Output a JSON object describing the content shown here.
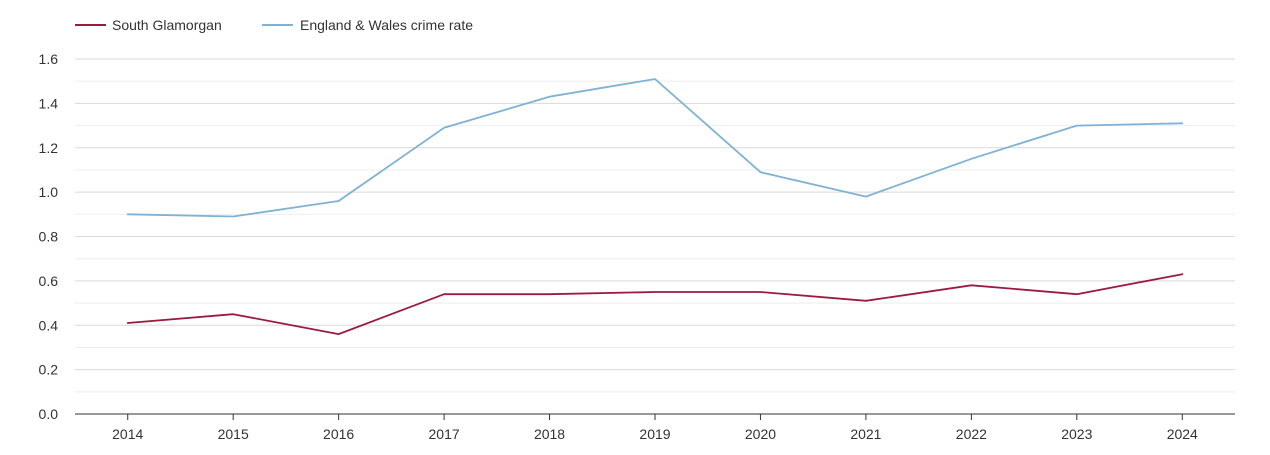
{
  "chart_data": {
    "type": "line",
    "title": "",
    "xlabel": "",
    "ylabel": "",
    "categories": [
      "2014",
      "2015",
      "2016",
      "2017",
      "2018",
      "2019",
      "2020",
      "2021",
      "2022",
      "2023",
      "2024"
    ],
    "ylim": [
      0,
      1.6
    ],
    "yticks": [
      "0.0",
      "0.2",
      "0.4",
      "0.6",
      "0.8",
      "1.0",
      "1.2",
      "1.4",
      "1.6"
    ],
    "grid": true,
    "legend_position": "top-left",
    "series": [
      {
        "name": "South Glamorgan",
        "color": "#9b1b3f",
        "values": [
          0.41,
          0.45,
          0.36,
          0.54,
          0.54,
          0.55,
          0.55,
          0.51,
          0.58,
          0.54,
          0.63
        ]
      },
      {
        "name": "England & Wales crime rate",
        "color": "#7fb2d5",
        "values": [
          0.9,
          0.89,
          0.96,
          1.29,
          1.43,
          1.51,
          1.09,
          0.98,
          1.15,
          1.3,
          1.31
        ]
      }
    ]
  }
}
